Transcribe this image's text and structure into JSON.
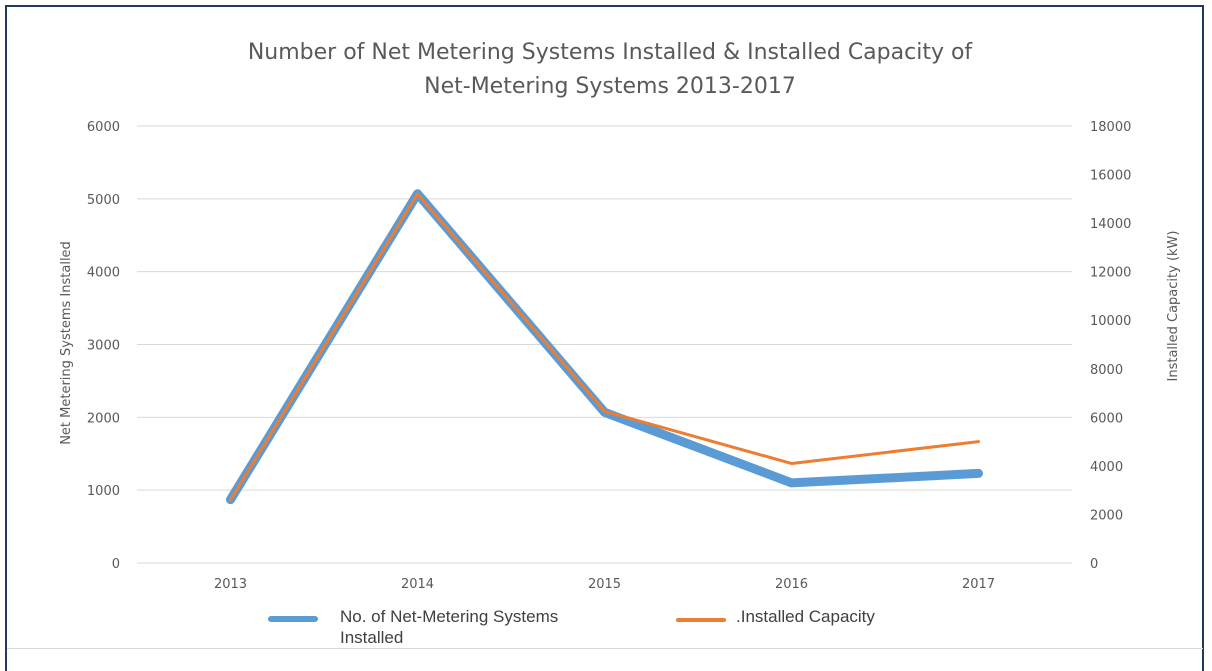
{
  "chart_data": {
    "type": "line",
    "title_line1": "Number of Net Metering Systems Installed & Installed Capacity of",
    "title_line2": "Net-Metering Systems 2013-2017",
    "categories": [
      "2013",
      "2014",
      "2015",
      "2016",
      "2017"
    ],
    "ylabel_left": "Net Metering Systems Installed",
    "ylabel_right": "Installed Capacity (kW)",
    "ylim_left": [
      0,
      6000
    ],
    "ylim_right": [
      0,
      18000
    ],
    "yticks_left": [
      "0",
      "1000",
      "2000",
      "3000",
      "4000",
      "5000",
      "6000"
    ],
    "yticks_right": [
      "0",
      "2000",
      "4000",
      "6000",
      "8000",
      "10000",
      "12000",
      "14000",
      "16000",
      "18000"
    ],
    "grid": true,
    "legend_position": "bottom",
    "series": [
      {
        "name": "No. of Net-Metering Systems Installed",
        "axis": "left",
        "color": "#5b9bd5",
        "values": [
          870,
          5070,
          2070,
          1100,
          1230
        ]
      },
      {
        "name": ".Installed Capacity",
        "axis": "right",
        "color": "#ed7d31",
        "values": [
          2600,
          15200,
          6250,
          4100,
          5000
        ]
      }
    ]
  },
  "legend": {
    "item1_line1": "No. of Net-Metering Systems",
    "item1_line2": "Installed",
    "item2": ".Installed Capacity"
  }
}
